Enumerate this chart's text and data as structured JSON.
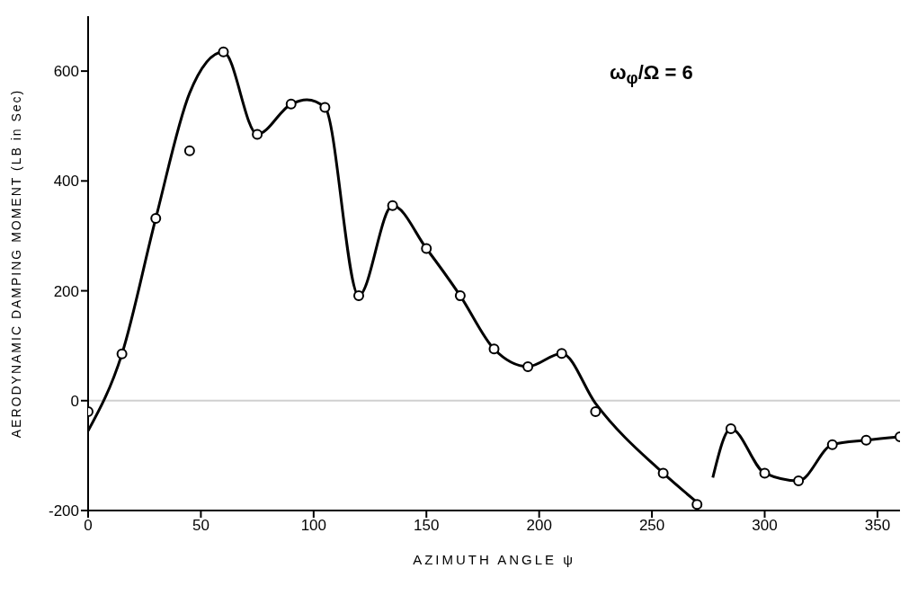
{
  "chart_data": {
    "type": "scatter",
    "xlabel": "AZIMUTH ANGLE ψ",
    "ylabel": "AERODYNAMIC DAMPING MOMENT (LB in Sec)",
    "annotations": [
      "ω$_{φ}$/Ω = 6"
    ],
    "xlim": [
      0,
      360
    ],
    "xticks": [
      0,
      50,
      100,
      150,
      200,
      250,
      300,
      350
    ],
    "ylim": [
      -200,
      700
    ],
    "yticks": [
      -200,
      0,
      200,
      400,
      600
    ],
    "grid": false,
    "marker": "circle",
    "ref_lines": [
      {
        "axis": "y",
        "value": 0,
        "color": "#d0d0d0"
      }
    ],
    "series": [
      {
        "color": "#000000",
        "x": [
          0,
          15,
          30,
          45,
          60,
          75,
          90,
          105,
          120,
          135,
          150,
          165,
          180,
          195,
          210,
          225,
          255,
          270,
          285,
          300,
          315,
          330,
          345,
          360
        ],
        "values": [
          -20,
          85,
          332,
          455,
          635,
          485,
          540,
          534,
          191,
          355,
          277,
          191,
          94,
          62,
          86,
          -20,
          -132,
          -189,
          -51,
          -132,
          -146,
          -80,
          -72,
          -66
        ]
      },
      {
        "type": "line",
        "color": "#000000",
        "marker": "none",
        "line_style": "solid",
        "x": [
          0,
          15,
          30,
          45,
          60,
          75,
          90,
          97,
          105,
          120,
          135,
          150,
          165,
          180,
          195,
          210,
          225,
          255,
          270,
          273,
          277,
          285,
          300,
          315,
          330,
          345,
          360
        ],
        "values": [
          -55,
          85,
          332,
          560,
          635,
          485,
          540,
          548,
          534,
          191,
          355,
          277,
          191,
          94,
          62,
          86,
          -5,
          -132,
          -185,
          null,
          -140,
          -51,
          -132,
          -146,
          -80,
          -72,
          -66
        ]
      }
    ]
  }
}
